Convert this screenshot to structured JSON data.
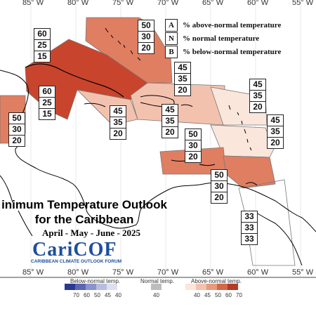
{
  "map": {
    "longitude_labels": [
      "85° W",
      "80° W",
      "75° W",
      "70° W",
      "65° W",
      "60° W",
      "55° W"
    ],
    "region_colors": {
      "an60": "#c9442c",
      "an50": "#e07e62",
      "an45": "#f3c2ae",
      "an40": "#fbe6dc",
      "nn": "#ffffff"
    }
  },
  "legend": {
    "rows": [
      {
        "key": "A",
        "text": "% above-normal temperature"
      },
      {
        "key": "N",
        "text": "% normal temperature"
      },
      {
        "key": "B",
        "text": "% below-normal temperature"
      }
    ]
  },
  "probability_boxes": [
    {
      "id": "bahamas",
      "above": "50",
      "normal": "30",
      "below": "20"
    },
    {
      "id": "cuba-north",
      "above": "60",
      "normal": "25",
      "below": "15"
    },
    {
      "id": "cuba-south",
      "above": "60",
      "normal": "25",
      "below": "15"
    },
    {
      "id": "belize",
      "above": "50",
      "normal": "30",
      "below": "20"
    },
    {
      "id": "hispaniola-north",
      "above": "45",
      "normal": "35",
      "below": "20"
    },
    {
      "id": "jamaica",
      "above": "45",
      "normal": "35",
      "below": "20"
    },
    {
      "id": "hispaniola-south",
      "above": "45",
      "normal": "35",
      "below": "20"
    },
    {
      "id": "leewards-north",
      "above": "45",
      "normal": "35",
      "below": "20"
    },
    {
      "id": "leewards-east",
      "above": "45",
      "normal": "35",
      "below": "20"
    },
    {
      "id": "abc-islands",
      "above": "50",
      "normal": "30",
      "below": "20"
    },
    {
      "id": "trinidad",
      "above": "50",
      "normal": "30",
      "below": "20"
    },
    {
      "id": "guianas",
      "above": "33",
      "normal": "33",
      "below": "33"
    }
  ],
  "title": {
    "line1": "inimum Temperature Outlook",
    "line2": "for the Caribbean",
    "dates": "April - May - June - 2025"
  },
  "logo": {
    "name": "CariCOF",
    "subtitle": "CARIBBEAN CLIMATE OUTLOOK FORUM"
  },
  "colorbar": {
    "below_label": "Below-normal temp.",
    "normal_label": "Normal temp.",
    "above_label": "Above-normal temp.",
    "below_ticks": [
      "70",
      "60",
      "50",
      "45",
      "40"
    ],
    "normal_tick": "40",
    "above_ticks": [
      "40",
      "45",
      "50",
      "60",
      "70"
    ],
    "below_colors": [
      "#2b3a8f",
      "#5a66b3",
      "#8a93cc",
      "#b7bde0",
      "#dcdff0"
    ],
    "normal_color": "#bdbdbd",
    "above_colors": [
      "#fbe6dc",
      "#f3c2ae",
      "#e89a7f",
      "#d5664a",
      "#b53a26"
    ]
  }
}
